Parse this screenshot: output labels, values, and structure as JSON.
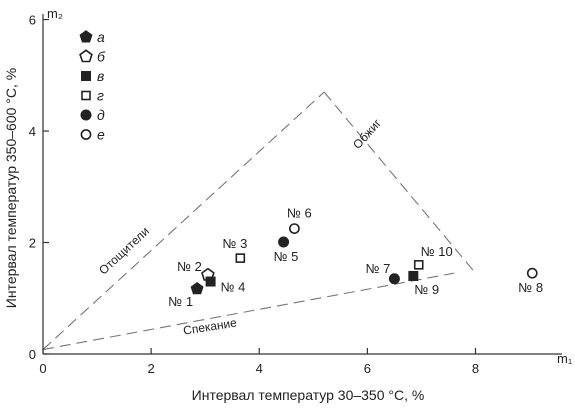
{
  "chart_data": {
    "type": "scatter",
    "xlabel": "Интервал температур 30–350 °С, %",
    "ylabel": "Интервал температур 350–600 °С, %",
    "x_axis_symbol": "m₁",
    "y_axis_symbol": "m₂",
    "xlim": [
      0,
      9.6
    ],
    "ylim": [
      0,
      6.1
    ],
    "xticks": [
      "0",
      "2",
      "4",
      "6",
      "8"
    ],
    "yticks": [
      "0",
      "2",
      "4",
      "6"
    ],
    "grid": false,
    "legend_position": "top-left",
    "series": [
      {
        "name": "а",
        "marker": "pentagon-filled"
      },
      {
        "name": "б",
        "marker": "pentagon-open"
      },
      {
        "name": "в",
        "marker": "square-filled"
      },
      {
        "name": "г",
        "marker": "square-open"
      },
      {
        "name": "д",
        "marker": "circle-filled"
      },
      {
        "name": "е",
        "marker": "circle-open"
      }
    ],
    "points": [
      {
        "label": "№ 1",
        "x": 2.85,
        "y": 1.17,
        "series": "а"
      },
      {
        "label": "№ 2",
        "x": 3.05,
        "y": 1.42,
        "series": "б"
      },
      {
        "label": "№ 4",
        "x": 3.1,
        "y": 1.3,
        "series": "в"
      },
      {
        "label": "№ 3",
        "x": 3.65,
        "y": 1.72,
        "series": "г"
      },
      {
        "label": "№ 5",
        "x": 4.45,
        "y": 2.01,
        "series": "д"
      },
      {
        "label": "№ 6",
        "x": 4.65,
        "y": 2.25,
        "series": "е"
      },
      {
        "label": "№ 7",
        "x": 6.5,
        "y": 1.35,
        "series": "д"
      },
      {
        "label": "№ 9",
        "x": 6.85,
        "y": 1.4,
        "series": "в"
      },
      {
        "label": "№ 10",
        "x": 6.95,
        "y": 1.6,
        "series": "г"
      },
      {
        "label": "№ 8",
        "x": 9.05,
        "y": 1.45,
        "series": "е"
      }
    ],
    "boundaries": [
      {
        "x1": 0,
        "y1": 0.08,
        "x2": 5.2,
        "y2": 4.7
      },
      {
        "x1": 5.2,
        "y1": 4.7,
        "x2": 8.0,
        "y2": 1.45
      },
      {
        "x1": 0,
        "y1": 0.08,
        "x2": 7.6,
        "y2": 1.45
      }
    ],
    "region_labels": [
      {
        "text": "Отощители",
        "x": 1.55,
        "y": 1.8,
        "angle": -43
      },
      {
        "text": "Обжиг",
        "x": 6.05,
        "y": 3.9,
        "angle": -48
      },
      {
        "text": "Спекание",
        "x": 3.1,
        "y": 0.42,
        "angle": -9
      }
    ]
  }
}
